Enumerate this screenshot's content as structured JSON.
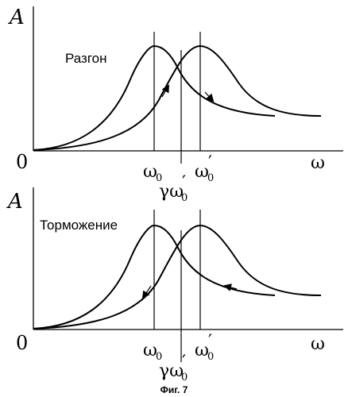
{
  "panels": [
    {
      "y_axis": "A",
      "x_axis": "ω",
      "origin": "0",
      "omega0": "ω",
      "omega0_sub": "0",
      "omega0p": "ω",
      "omega0p_sub": "0",
      "omega0p_prime": "′",
      "gamma": "γω",
      "gamma_sub": "0",
      "gamma_prime": "′",
      "process": "Разгон"
    },
    {
      "y_axis": "A",
      "x_axis": "ω",
      "origin": "0",
      "omega0": "ω",
      "omega0_sub": "0",
      "omega0p": "ω",
      "omega0p_sub": "0",
      "omega0p_prime": "′",
      "gamma": "γω",
      "gamma_sub": "0",
      "gamma_prime": "′",
      "process": "Торможение"
    }
  ],
  "caption": "Фиг. 7"
}
